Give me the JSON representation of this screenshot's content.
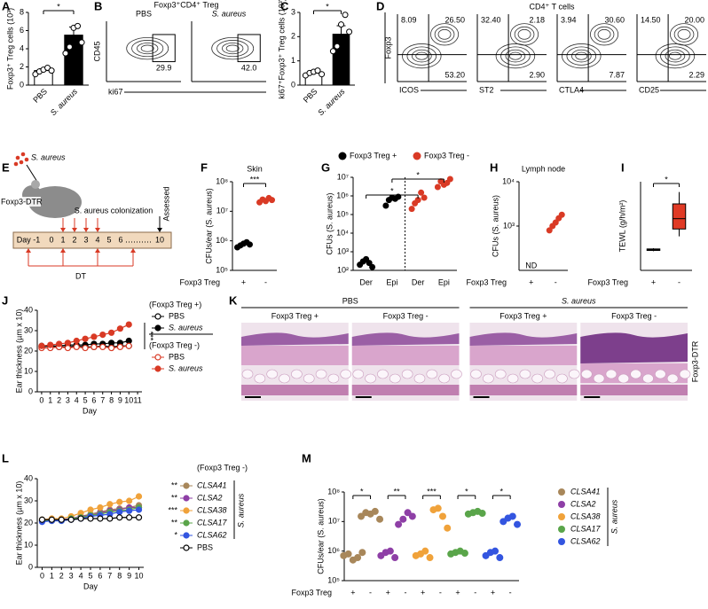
{
  "chart_data": [
    {
      "panel": "A",
      "type": "bar",
      "ylabel": "Foxp3⁺ Treg cells (10³)",
      "categories": [
        "PBS",
        "S. aureus"
      ],
      "values": [
        1.6,
        5.5
      ],
      "errors": [
        0.2,
        0.9
      ],
      "points": [
        [
          1.2,
          1.5,
          1.7,
          1.9,
          1.6
        ],
        [
          3.5,
          4.2,
          6.3,
          6.5,
          4.7
        ]
      ],
      "colors": [
        "#ffffff",
        "#000000"
      ],
      "ylim": [
        0,
        8
      ],
      "yticks": [
        0,
        2,
        4,
        6,
        8
      ],
      "annotations": [
        "*"
      ]
    },
    {
      "panel": "B",
      "type": "flow",
      "title": "Foxp3⁺CD4⁺ Treg",
      "ylabel": "CD45",
      "xlabel": "ki67",
      "plots": [
        {
          "title": "PBS",
          "gate": "29.9"
        },
        {
          "title": "S. aureus",
          "gate": "42.0"
        }
      ]
    },
    {
      "panel": "C",
      "type": "bar",
      "ylabel": "ki67⁺Foxp3⁺ Treg cells (10³)",
      "categories": [
        "PBS",
        "S. aureus"
      ],
      "values": [
        0.5,
        2.1
      ],
      "errors": [
        0.1,
        0.35
      ],
      "points": [
        [
          0.4,
          0.5,
          0.55,
          0.6,
          0.45
        ],
        [
          1.4,
          1.6,
          2.5,
          2.9,
          2.2
        ]
      ],
      "colors": [
        "#ffffff",
        "#000000"
      ],
      "ylim": [
        0,
        3
      ],
      "yticks": [
        0,
        1,
        2,
        3
      ],
      "annotations": [
        "*"
      ]
    },
    {
      "panel": "D",
      "type": "flow",
      "title": "CD4⁺ T cells",
      "ylabel": "Foxp3",
      "plots": [
        {
          "xlabel": "ICOS",
          "ul": "8.09",
          "ur": "26.50",
          "lr": "53.20"
        },
        {
          "xlabel": "ST2",
          "ul": "32.40",
          "ur": "2.18",
          "lr": "2.90"
        },
        {
          "xlabel": "CTLA4",
          "ul": "3.94",
          "ur": "30.60",
          "lr": "7.87"
        },
        {
          "xlabel": "CD25",
          "ul": "14.50",
          "ur": "20.00",
          "lr": "2.29"
        }
      ]
    },
    {
      "panel": "E",
      "type": "schematic",
      "agent": "S. aureus",
      "mouse": "Foxp3-DTR",
      "colonization": "S. aureus colonization",
      "endpoint": "Assessed",
      "timeline": [
        "Day -1",
        "0",
        "1",
        "2",
        "3",
        "4",
        "5",
        "6",
        "10"
      ],
      "treatment": "DT"
    },
    {
      "panel": "F",
      "type": "dot",
      "title": "Skin",
      "ylabel": "CFUs/ear (S. aureus)",
      "xlabel": "Foxp3 Treg",
      "categories": [
        "+",
        "-"
      ],
      "log": true,
      "ylim": [
        100000,
        100000000
      ],
      "yticks": [
        {
          "value": 100000,
          "label": "10⁵"
        },
        {
          "value": 1000000,
          "label": "10⁶"
        },
        {
          "value": 10000000,
          "label": "10⁷"
        },
        {
          "value": 100000000,
          "label": "10⁸"
        }
      ],
      "series": [
        {
          "color": "#000000",
          "values": [
            [
              600000,
              700000,
              800000,
              900000,
              750000
            ],
            null
          ]
        },
        {
          "color": "#d93a25",
          "values": [
            null,
            [
              20000000,
              25000000,
              22000000,
              28000000,
              24000000
            ]
          ]
        }
      ],
      "annotations": [
        "***"
      ]
    },
    {
      "panel": "G",
      "type": "dot",
      "ylabel": "CFUs (S. aureus)",
      "categories": [
        "Der",
        "Epi",
        "Der",
        "Epi"
      ],
      "log": true,
      "ylim": [
        100,
        10000000
      ],
      "yticks": [
        {
          "value": 100,
          "label": "10²"
        },
        {
          "value": 1000,
          "label": "10³"
        },
        {
          "value": 10000,
          "label": "10⁴"
        },
        {
          "value": 100000,
          "label": "10⁵"
        },
        {
          "value": 1000000,
          "label": "10⁶"
        },
        {
          "value": 10000000,
          "label": "10⁷"
        }
      ],
      "series": [
        {
          "name": "Foxp3 Treg +",
          "color": "#000000",
          "values": [
            [
              200,
              300,
              400,
              250,
              150
            ],
            [
              300000,
              600000,
              800000,
              700000,
              900000
            ],
            null,
            null
          ]
        },
        {
          "name": "Foxp3 Treg -",
          "color": "#d93a25",
          "values": [
            null,
            null,
            [
              200000,
              400000,
              600000,
              1500000,
              800000
            ],
            [
              3000000,
              6000000,
              4000000,
              5000000,
              8000000
            ]
          ]
        }
      ],
      "annotations": [
        "*",
        "*"
      ]
    },
    {
      "panel": "H",
      "type": "dot",
      "title": "Lymph node",
      "ylabel": "CFUs (S. aureus)",
      "xlabel": "Foxp3 Treg",
      "categories": [
        "+",
        "-"
      ],
      "log": true,
      "ylim": [
        100,
        10000
      ],
      "yticks": [
        {
          "value": 1000,
          "label": "10³"
        },
        {
          "value": 10000,
          "label": "10⁴"
        }
      ],
      "series": [
        {
          "color": "#d93a25",
          "values": [
            null,
            [
              800,
              1000,
              1200,
              1500,
              1800
            ]
          ]
        }
      ],
      "annotations": [
        "ND"
      ]
    },
    {
      "panel": "I",
      "type": "box",
      "ylabel": "TEWL (g/h/m²)",
      "xlabel": "Foxp3 Treg",
      "categories": [
        "+",
        "-"
      ],
      "boxes": [
        {
          "min": 1.3,
          "q1": 1.35,
          "median": 1.4,
          "q3": 1.45,
          "max": 1.5
        },
        {
          "min": 2.3,
          "q1": 2.8,
          "median": 3.5,
          "q3": 4.5,
          "max": 5.3
        }
      ],
      "colors": [
        "#555555",
        "#e03a25"
      ],
      "ylim": [
        0,
        6
      ],
      "annotations": [
        "*"
      ]
    },
    {
      "panel": "J",
      "type": "line",
      "ylabel": "Ear thickness (µm x 10)",
      "xlabel": "Day",
      "x": [
        0,
        1,
        2,
        3,
        4,
        5,
        6,
        7,
        8,
        9,
        10
      ],
      "xlim": [
        -0.5,
        11.5
      ],
      "xticks": [
        0,
        1,
        2,
        3,
        4,
        5,
        6,
        7,
        8,
        9,
        10,
        11
      ],
      "ylim": [
        0,
        40
      ],
      "yticks": [
        0,
        10,
        20,
        30,
        40
      ],
      "legend_groups": [
        "(Foxp3 Treg +)",
        "(Foxp3 Treg -)"
      ],
      "series": [
        {
          "name": "PBS",
          "color": "#000000",
          "marker": "open",
          "values": [
            22,
            22.5,
            22,
            22,
            22.5,
            22,
            22,
            22.5,
            22,
            22.5,
            22.5
          ]
        },
        {
          "name": "S. aureus",
          "color": "#000000",
          "marker": "filled",
          "values": [
            22.5,
            22.5,
            22.5,
            23,
            23,
            23,
            23.5,
            23.5,
            24,
            24,
            25
          ]
        },
        {
          "name": "PBS",
          "color": "#d93a25",
          "marker": "open",
          "values": [
            21.5,
            21.5,
            22,
            21.5,
            22,
            21.5,
            22,
            22,
            21.5,
            22,
            22.5
          ]
        },
        {
          "name": "S. aureus",
          "color": "#d93a25",
          "marker": "filled",
          "values": [
            22.5,
            23,
            23.5,
            24,
            25,
            26,
            27,
            28,
            29,
            31,
            33
          ]
        }
      ],
      "annotations": [
        "***"
      ]
    },
    {
      "panel": "K",
      "type": "histology",
      "groups": [
        "PBS",
        "S. aureus"
      ],
      "conditions": [
        "Foxp3 Treg +",
        "Foxp3 Treg -"
      ],
      "side_label": "Foxp3-DTR"
    },
    {
      "panel": "L",
      "type": "line",
      "ylabel": "Ear thickness (µm x 10)",
      "xlabel": "Day",
      "x": [
        0,
        1,
        2,
        3,
        4,
        5,
        6,
        7,
        8,
        9,
        10
      ],
      "xlim": [
        -0.5,
        10.5
      ],
      "xticks": [
        0,
        1,
        2,
        3,
        4,
        5,
        6,
        7,
        8,
        9,
        10
      ],
      "ylim": [
        0,
        40
      ],
      "yticks": [
        0,
        10,
        20,
        30,
        40
      ],
      "legend_title": "(Foxp3 Treg -)",
      "legend_label": "S. aureus",
      "series": [
        {
          "name": "CLSA41",
          "color": "#a8875a",
          "marker": "filled",
          "annotation": "**",
          "values": [
            21,
            21,
            21.5,
            22,
            23,
            24,
            25,
            26,
            26.5,
            27,
            28
          ]
        },
        {
          "name": "CLSA2",
          "color": "#8e3fa6",
          "marker": "filled",
          "annotation": "**",
          "values": [
            21,
            21,
            21.5,
            22,
            23,
            23.5,
            24.5,
            25.5,
            26,
            27,
            27
          ]
        },
        {
          "name": "CLSA38",
          "color": "#f0a23a",
          "marker": "filled",
          "annotation": "***",
          "values": [
            21.5,
            22,
            22,
            23,
            24.5,
            26,
            27,
            28.5,
            29.5,
            30,
            32
          ]
        },
        {
          "name": "CLSA17",
          "color": "#5aa54a",
          "marker": "filled",
          "annotation": "**",
          "values": [
            21,
            21,
            21,
            22,
            22.5,
            23.5,
            24,
            25,
            25.5,
            26,
            27
          ]
        },
        {
          "name": "CLSA62",
          "color": "#3355e0",
          "marker": "filled",
          "annotation": "*",
          "values": [
            20.5,
            21,
            21,
            21.5,
            22,
            23,
            23.5,
            24,
            25,
            25.5,
            26
          ]
        },
        {
          "name": "PBS",
          "color": "#000000",
          "marker": "open",
          "values": [
            21.5,
            21.5,
            21.5,
            21.5,
            22,
            22,
            22,
            22,
            22.5,
            22.5,
            22.5
          ]
        }
      ]
    },
    {
      "panel": "M",
      "type": "dot",
      "grouped": true,
      "ylabel": "CFUs/ear (S. aureus)",
      "xlabel": "Foxp3 Treg",
      "categories": [
        "+",
        "-"
      ],
      "legend_label": "S. aureus",
      "log": true,
      "ylim": [
        100000,
        100000000
      ],
      "yticks": [
        {
          "value": 100000,
          "label": "10⁵"
        },
        {
          "value": 1000000,
          "label": "10⁶"
        },
        {
          "value": 10000000,
          "label": "10⁷"
        },
        {
          "value": 100000000,
          "label": "10⁸"
        }
      ],
      "series": [
        {
          "name": "CLSA41",
          "color": "#a8875a",
          "annotation": "*",
          "values": [
            [
              700000,
              800000,
              500000,
              600000,
              900000
            ],
            [
              15000000,
              20000000,
              18000000,
              22000000,
              12000000
            ]
          ]
        },
        {
          "name": "CLSA2",
          "color": "#8e3fa6",
          "annotation": "**",
          "values": [
            [
              700000,
              900000,
              1000000,
              600000
            ],
            [
              8000000,
              12000000,
              20000000,
              15000000
            ]
          ]
        },
        {
          "name": "CLSA38",
          "color": "#f0a23a",
          "annotation": "***",
          "values": [
            [
              700000,
              800000,
              1000000,
              600000
            ],
            [
              25000000,
              28000000,
              15000000,
              6000000
            ]
          ]
        },
        {
          "name": "CLSA17",
          "color": "#5aa54a",
          "annotation": "*",
          "values": [
            [
              800000,
              900000,
              1000000,
              850000
            ],
            [
              18000000,
              20000000,
              22000000,
              19000000
            ]
          ]
        },
        {
          "name": "CLSA62",
          "color": "#3355e0",
          "annotation": "*",
          "values": [
            [
              700000,
              900000,
              1000000,
              600000
            ],
            [
              10000000,
              13000000,
              15000000,
              8000000
            ]
          ]
        }
      ]
    }
  ]
}
